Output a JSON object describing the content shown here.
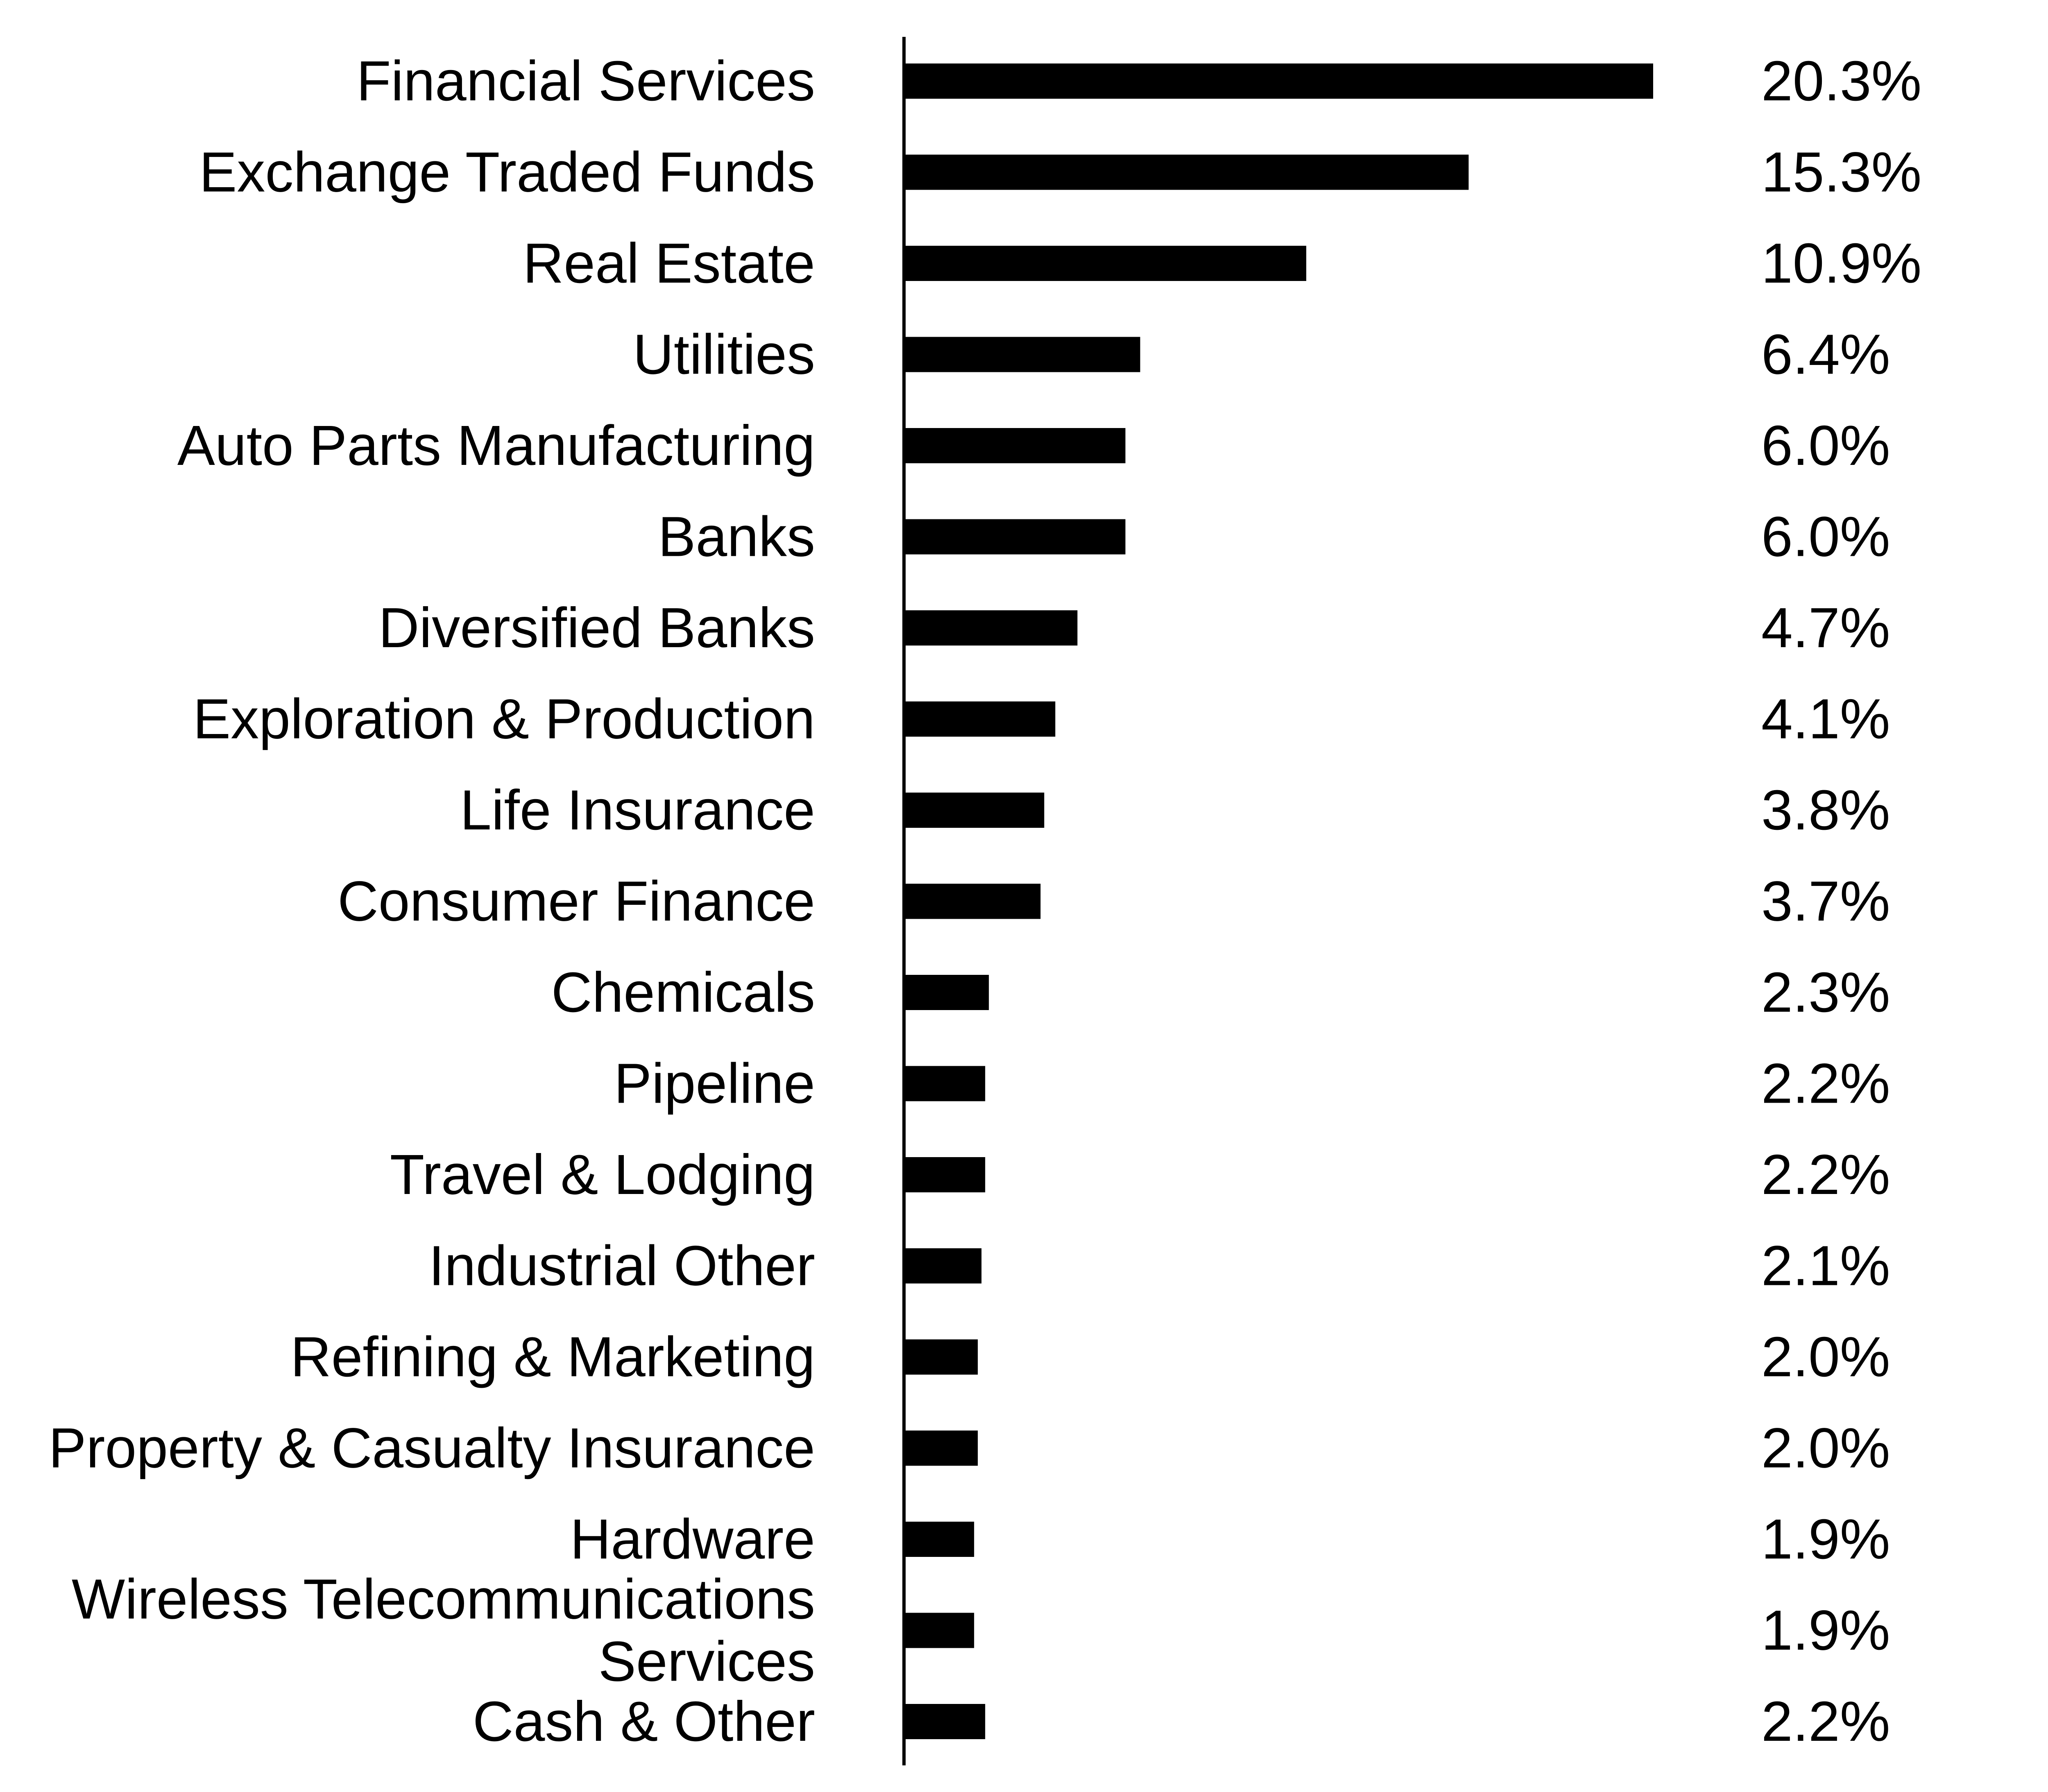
{
  "chart_data": {
    "type": "bar",
    "orientation": "horizontal",
    "categories": [
      "Financial Services",
      "Exchange Traded Funds",
      "Real Estate",
      "Utilities",
      "Auto Parts Manufacturing",
      "Banks",
      "Diversified Banks",
      "Exploration & Production",
      "Life Insurance",
      "Consumer Finance",
      "Chemicals",
      "Pipeline",
      "Travel & Lodging",
      "Industrial Other",
      "Refining & Marketing",
      "Property & Casualty Insurance",
      "Hardware",
      "Wireless Telecommunications Services",
      "Cash & Other"
    ],
    "category_label_lines": [
      [
        "Financial Services"
      ],
      [
        "Exchange Traded Funds"
      ],
      [
        "Real Estate"
      ],
      [
        "Utilities"
      ],
      [
        "Auto Parts Manufacturing"
      ],
      [
        "Banks"
      ],
      [
        "Diversified Banks"
      ],
      [
        "Exploration & Production"
      ],
      [
        "Life Insurance"
      ],
      [
        "Consumer Finance"
      ],
      [
        "Chemicals"
      ],
      [
        "Pipeline"
      ],
      [
        "Travel & Lodging"
      ],
      [
        "Industrial Other"
      ],
      [
        "Refining & Marketing"
      ],
      [
        "Property & Casualty Insurance"
      ],
      [
        "Hardware"
      ],
      [
        "Wireless Telecommunications",
        "Services"
      ],
      [
        "Cash & Other"
      ]
    ],
    "values": [
      20.3,
      15.3,
      10.9,
      6.4,
      6.0,
      6.0,
      4.7,
      4.1,
      3.8,
      3.7,
      2.3,
      2.2,
      2.2,
      2.1,
      2.0,
      2.0,
      1.9,
      1.9,
      2.2
    ],
    "value_labels": [
      "20.3%",
      "15.3%",
      "10.9%",
      "6.4%",
      "6.0%",
      "6.0%",
      "4.7%",
      "4.1%",
      "3.8%",
      "3.7%",
      "2.3%",
      "2.2%",
      "2.2%",
      "2.1%",
      "2.0%",
      "2.0%",
      "1.9%",
      "1.9%",
      "2.2%"
    ],
    "bar_color": "#000000",
    "title": "",
    "xlabel": "",
    "ylabel": "",
    "grid": false,
    "legend": "none"
  }
}
